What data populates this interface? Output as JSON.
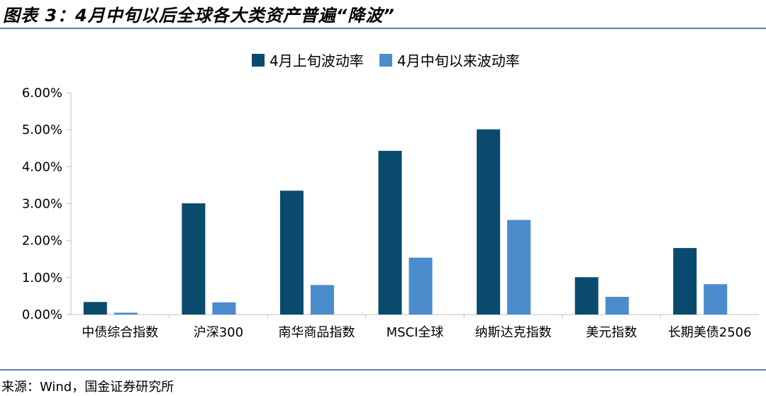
{
  "title": "图表 3：4月中旬以后全球各大类资产普遍“降波”",
  "source": "来源：Wind，国金证券研究所",
  "colors": {
    "series1": "#0b4a6f",
    "series2": "#4a8ccc",
    "rule": "#5f7fa6",
    "axis": "#bfbfbf"
  },
  "chart_data": {
    "type": "bar",
    "title": "",
    "xlabel": "",
    "ylabel": "",
    "categories": [
      "中债综合指数",
      "沪深300",
      "南华商品指数",
      "MSCI全球",
      "纳斯达克指数",
      "美元指数",
      "长期美债2506"
    ],
    "series": [
      {
        "name": "4月上旬波动率",
        "values": [
          0.34,
          3.01,
          3.35,
          4.43,
          5.01,
          1.01,
          1.8
        ]
      },
      {
        "name": "4月中旬以来波动率",
        "values": [
          0.05,
          0.33,
          0.8,
          1.54,
          2.56,
          0.48,
          0.82
        ]
      }
    ],
    "ylim": [
      0,
      6
    ],
    "yticks": [
      "0.00%",
      "1.00%",
      "2.00%",
      "3.00%",
      "4.00%",
      "5.00%",
      "6.00%"
    ],
    "y_unit": "%",
    "grid": false,
    "legend": "top-center"
  }
}
